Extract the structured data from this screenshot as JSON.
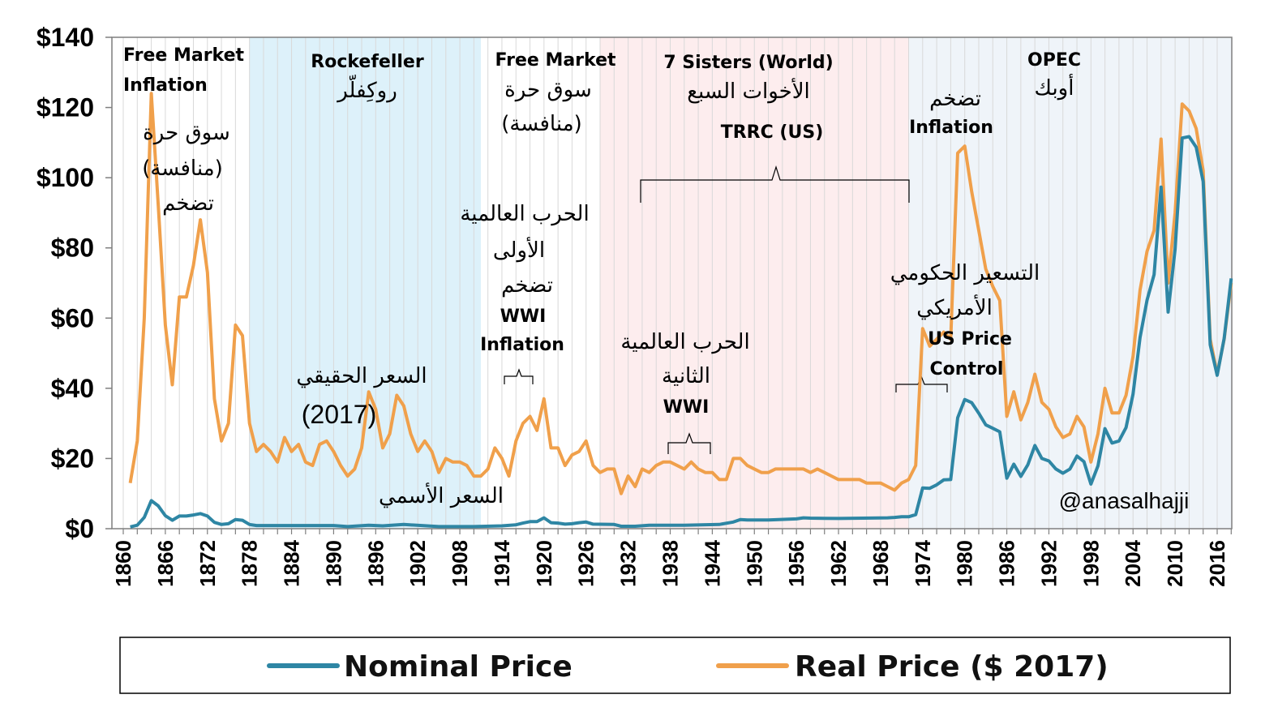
{
  "chart_data": {
    "type": "line",
    "ylim": [
      0,
      140
    ],
    "xlim": [
      1860,
      2018
    ],
    "y_ticks": [
      "$0",
      "$20",
      "$40",
      "$60",
      "$80",
      "$100",
      "$120",
      "$140"
    ],
    "y_tick_values": [
      0,
      20,
      40,
      60,
      80,
      100,
      120,
      140
    ],
    "x_ticks": [
      "1860",
      "1866",
      "1872",
      "1878",
      "1884",
      "1890",
      "1896",
      "1902",
      "1908",
      "1914",
      "1920",
      "1926",
      "1932",
      "1938",
      "1944",
      "1950",
      "1956",
      "1962",
      "1968",
      "1974",
      "1980",
      "1986",
      "1992",
      "1998",
      "2004",
      "2010",
      "2016"
    ],
    "x_tick_values": [
      1860,
      1866,
      1872,
      1878,
      1884,
      1890,
      1896,
      1902,
      1908,
      1914,
      1920,
      1926,
      1932,
      1938,
      1944,
      1950,
      1956,
      1962,
      1968,
      1974,
      1980,
      1986,
      1992,
      1998,
      2004,
      2010,
      2016
    ],
    "grid": "vertical",
    "legend_position": "bottom",
    "series": [
      {
        "name": "Nominal Price",
        "color": "#2E86A4",
        "points": [
          [
            1861,
            0.5
          ],
          [
            1862,
            1.0
          ],
          [
            1863,
            3.2
          ],
          [
            1864,
            8
          ],
          [
            1865,
            6.5
          ],
          [
            1866,
            3.7
          ],
          [
            1867,
            2.4
          ],
          [
            1868,
            3.6
          ],
          [
            1869,
            3.6
          ],
          [
            1870,
            3.9
          ],
          [
            1871,
            4.3
          ],
          [
            1872,
            3.6
          ],
          [
            1873,
            1.8
          ],
          [
            1874,
            1.2
          ],
          [
            1875,
            1.4
          ],
          [
            1876,
            2.6
          ],
          [
            1877,
            2.4
          ],
          [
            1878,
            1.2
          ],
          [
            1879,
            0.9
          ],
          [
            1880,
            0.9
          ],
          [
            1885,
            0.9
          ],
          [
            1890,
            0.9
          ],
          [
            1892,
            0.6
          ],
          [
            1895,
            1.0
          ],
          [
            1897,
            0.8
          ],
          [
            1900,
            1.2
          ],
          [
            1905,
            0.6
          ],
          [
            1910,
            0.6
          ],
          [
            1914,
            0.8
          ],
          [
            1916,
            1.1
          ],
          [
            1917,
            1.6
          ],
          [
            1918,
            2.0
          ],
          [
            1919,
            2.0
          ],
          [
            1920,
            3.1
          ],
          [
            1921,
            1.7
          ],
          [
            1922,
            1.6
          ],
          [
            1923,
            1.3
          ],
          [
            1924,
            1.4
          ],
          [
            1925,
            1.7
          ],
          [
            1926,
            1.9
          ],
          [
            1927,
            1.3
          ],
          [
            1930,
            1.2
          ],
          [
            1931,
            0.7
          ],
          [
            1933,
            0.7
          ],
          [
            1935,
            1.0
          ],
          [
            1940,
            1.0
          ],
          [
            1945,
            1.2
          ],
          [
            1947,
            1.9
          ],
          [
            1948,
            2.6
          ],
          [
            1949,
            2.5
          ],
          [
            1952,
            2.5
          ],
          [
            1956,
            2.8
          ],
          [
            1957,
            3.1
          ],
          [
            1958,
            3.0
          ],
          [
            1962,
            2.9
          ],
          [
            1969,
            3.1
          ],
          [
            1970,
            3.2
          ],
          [
            1971,
            3.4
          ],
          [
            1972,
            3.4
          ],
          [
            1973,
            4.0
          ],
          [
            1974,
            11.6
          ],
          [
            1975,
            11.5
          ],
          [
            1976,
            12.5
          ],
          [
            1977,
            13.9
          ],
          [
            1978,
            14.0
          ],
          [
            1979,
            31.6
          ],
          [
            1980,
            36.8
          ],
          [
            1981,
            35.9
          ],
          [
            1982,
            32.9
          ],
          [
            1983,
            29.6
          ],
          [
            1984,
            28.6
          ],
          [
            1985,
            27.6
          ],
          [
            1986,
            14.4
          ],
          [
            1987,
            18.4
          ],
          [
            1988,
            14.9
          ],
          [
            1989,
            18.2
          ],
          [
            1990,
            23.7
          ],
          [
            1991,
            20.0
          ],
          [
            1992,
            19.3
          ],
          [
            1993,
            17.0
          ],
          [
            1994,
            15.8
          ],
          [
            1995,
            17.0
          ],
          [
            1996,
            20.7
          ],
          [
            1997,
            19.1
          ],
          [
            1998,
            12.7
          ],
          [
            1999,
            17.9
          ],
          [
            2000,
            28.5
          ],
          [
            2001,
            24.4
          ],
          [
            2002,
            25.0
          ],
          [
            2003,
            28.8
          ],
          [
            2004,
            38.3
          ],
          [
            2005,
            54.5
          ],
          [
            2006,
            65.1
          ],
          [
            2007,
            72.4
          ],
          [
            2008,
            97.3
          ],
          [
            2009,
            61.7
          ],
          [
            2010,
            79.6
          ],
          [
            2011,
            111.3
          ],
          [
            2012,
            111.7
          ],
          [
            2013,
            108.7
          ],
          [
            2014,
            98.9
          ],
          [
            2015,
            52.4
          ],
          [
            2016,
            43.7
          ],
          [
            2017,
            54.2
          ],
          [
            2018,
            71.3
          ]
        ]
      },
      {
        "name": "Real Price ($ 2017)",
        "color": "#F0A04B",
        "points": [
          [
            1861,
            13
          ],
          [
            1862,
            25
          ],
          [
            1863,
            60
          ],
          [
            1864,
            124
          ],
          [
            1865,
            92
          ],
          [
            1866,
            58
          ],
          [
            1867,
            41
          ],
          [
            1868,
            66
          ],
          [
            1869,
            66
          ],
          [
            1870,
            75
          ],
          [
            1871,
            88
          ],
          [
            1872,
            73
          ],
          [
            1873,
            37
          ],
          [
            1874,
            25
          ],
          [
            1875,
            30
          ],
          [
            1876,
            58
          ],
          [
            1877,
            55
          ],
          [
            1878,
            30
          ],
          [
            1879,
            22
          ],
          [
            1880,
            24
          ],
          [
            1881,
            22
          ],
          [
            1882,
            19
          ],
          [
            1883,
            26
          ],
          [
            1884,
            22
          ],
          [
            1885,
            24
          ],
          [
            1886,
            19
          ],
          [
            1887,
            18
          ],
          [
            1888,
            24
          ],
          [
            1889,
            25
          ],
          [
            1890,
            22
          ],
          [
            1891,
            18
          ],
          [
            1892,
            15
          ],
          [
            1893,
            17
          ],
          [
            1894,
            23
          ],
          [
            1895,
            39
          ],
          [
            1896,
            34
          ],
          [
            1897,
            23
          ],
          [
            1898,
            27
          ],
          [
            1899,
            38
          ],
          [
            1900,
            35
          ],
          [
            1901,
            27
          ],
          [
            1902,
            22
          ],
          [
            1903,
            25
          ],
          [
            1904,
            22
          ],
          [
            1905,
            16
          ],
          [
            1906,
            20
          ],
          [
            1907,
            19
          ],
          [
            1908,
            19
          ],
          [
            1909,
            18
          ],
          [
            1910,
            15
          ],
          [
            1911,
            15
          ],
          [
            1912,
            17
          ],
          [
            1913,
            23
          ],
          [
            1914,
            20
          ],
          [
            1915,
            15
          ],
          [
            1916,
            25
          ],
          [
            1917,
            30
          ],
          [
            1918,
            32
          ],
          [
            1919,
            28
          ],
          [
            1920,
            37
          ],
          [
            1921,
            23
          ],
          [
            1922,
            23
          ],
          [
            1923,
            18
          ],
          [
            1924,
            21
          ],
          [
            1925,
            22
          ],
          [
            1926,
            25
          ],
          [
            1927,
            18
          ],
          [
            1928,
            16
          ],
          [
            1929,
            17
          ],
          [
            1930,
            17
          ],
          [
            1931,
            10
          ],
          [
            1932,
            15
          ],
          [
            1933,
            12
          ],
          [
            1934,
            17
          ],
          [
            1935,
            16
          ],
          [
            1936,
            18
          ],
          [
            1937,
            19
          ],
          [
            1938,
            19
          ],
          [
            1939,
            18
          ],
          [
            1940,
            17
          ],
          [
            1941,
            19
          ],
          [
            1942,
            17
          ],
          [
            1943,
            16
          ],
          [
            1944,
            16
          ],
          [
            1945,
            14
          ],
          [
            1946,
            14
          ],
          [
            1947,
            20
          ],
          [
            1948,
            20
          ],
          [
            1949,
            18
          ],
          [
            1950,
            17
          ],
          [
            1951,
            16
          ],
          [
            1952,
            16
          ],
          [
            1953,
            17
          ],
          [
            1954,
            17
          ],
          [
            1955,
            17
          ],
          [
            1956,
            17
          ],
          [
            1957,
            17
          ],
          [
            1958,
            16
          ],
          [
            1959,
            17
          ],
          [
            1960,
            16
          ],
          [
            1961,
            15
          ],
          [
            1962,
            14
          ],
          [
            1963,
            14
          ],
          [
            1964,
            14
          ],
          [
            1965,
            14
          ],
          [
            1966,
            13
          ],
          [
            1967,
            13
          ],
          [
            1968,
            13
          ],
          [
            1969,
            12
          ],
          [
            1970,
            11
          ],
          [
            1971,
            13
          ],
          [
            1972,
            14
          ],
          [
            1973,
            18
          ],
          [
            1974,
            57
          ],
          [
            1975,
            52
          ],
          [
            1976,
            54
          ],
          [
            1977,
            56
          ],
          [
            1978,
            54
          ],
          [
            1979,
            107
          ],
          [
            1980,
            109
          ],
          [
            1981,
            96
          ],
          [
            1982,
            85
          ],
          [
            1983,
            74
          ],
          [
            1984,
            69
          ],
          [
            1985,
            65
          ],
          [
            1986,
            32
          ],
          [
            1987,
            39
          ],
          [
            1988,
            31
          ],
          [
            1989,
            36
          ],
          [
            1990,
            44
          ],
          [
            1991,
            36
          ],
          [
            1992,
            34
          ],
          [
            1993,
            29
          ],
          [
            1994,
            26
          ],
          [
            1995,
            27
          ],
          [
            1996,
            32
          ],
          [
            1997,
            29
          ],
          [
            1998,
            19
          ],
          [
            1999,
            27
          ],
          [
            2000,
            40
          ],
          [
            2001,
            33
          ],
          [
            2002,
            33
          ],
          [
            2003,
            38
          ],
          [
            2004,
            49
          ],
          [
            2005,
            68
          ],
          [
            2006,
            79
          ],
          [
            2007,
            85
          ],
          [
            2008,
            111
          ],
          [
            2009,
            70
          ],
          [
            2010,
            90
          ],
          [
            2011,
            121
          ],
          [
            2012,
            119
          ],
          [
            2013,
            114
          ],
          [
            2014,
            102
          ],
          [
            2015,
            54
          ],
          [
            2016,
            44
          ],
          [
            2017,
            54
          ],
          [
            2018,
            70
          ]
        ]
      }
    ],
    "eras": [
      {
        "id": "free-market-1",
        "from": 1860,
        "to": 1878,
        "color": "#ffffff",
        "label_en": "Free Market Inflation",
        "label_ar": ""
      },
      {
        "id": "rockefeller",
        "from": 1878,
        "to": 1911,
        "color": "#DDF1FA",
        "label_en": "Rockefeller",
        "label_ar": "روكِفلّر"
      },
      {
        "id": "free-market-2",
        "from": 1911,
        "to": 1928,
        "color": "#ffffff",
        "label_en": "Free Market",
        "label_ar": "سوق حرة (منافسة)"
      },
      {
        "id": "seven-sisters",
        "from": 1928,
        "to": 1972,
        "color": "#FDEDEE",
        "label_en": "7 Sisters (World)",
        "label_ar": "الأخوات السبع"
      },
      {
        "id": "opec",
        "from": 1972,
        "to": 2020,
        "color": "#EFF4F9",
        "label_en": "OPEC",
        "label_ar": "أوبك"
      }
    ]
  },
  "labels": {
    "free_market_1_en_l1": "Free Market",
    "free_market_1_en_l2": "Inflation",
    "free_market_1_ar_l1": "سوق حرة",
    "free_market_1_ar_l2": "(منافسة)",
    "free_market_1_ar_l3": "تضخم",
    "rockefeller_en": "Rockefeller",
    "rockefeller_ar": "روكِفلّر",
    "free_market_2_en": "Free Market",
    "free_market_2_ar_l1": "سوق حرة",
    "free_market_2_ar_l2": "(منافسة)",
    "seven_sisters_en": "7 Sisters (World)",
    "seven_sisters_ar": "الأخوات السبع",
    "trrc": "TRRC (US)",
    "opec_en": "OPEC",
    "opec_ar": "أوبك",
    "inflation_ar": "تضخم",
    "inflation_en": "Inflation",
    "wwi_ar_l1": "الحرب العالمية",
    "wwi_ar_l2": "الأولى",
    "wwi_ar_l3": "تضخم",
    "wwi_en_l1": "WWI",
    "wwi_en_l2": "Inflation",
    "real_price_ar": "السعر الحقيقي",
    "real_price_year": "(2017)",
    "wwii_ar_l1": "الحرب العالمية",
    "wwii_ar_l2": "الثانية",
    "wwii_en": "WWI",
    "us_control_ar_l1": "التسعير الحكومي",
    "us_control_ar_l2": "الأمريكي",
    "us_control_en_l1": "US Price",
    "us_control_en_l2": "Control",
    "nominal_ar": "السعر الأسمي",
    "handle": "@anasalhajji"
  },
  "legend": {
    "nominal": "Nominal Price",
    "real": "Real Price ($ 2017)"
  }
}
